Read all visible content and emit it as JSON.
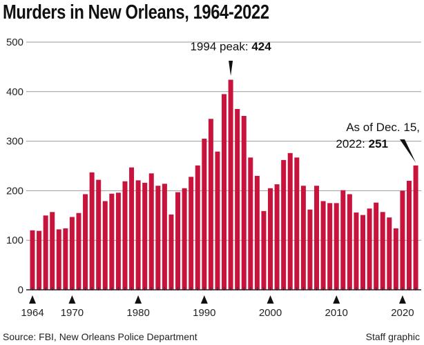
{
  "chart_data": {
    "type": "bar",
    "title": "Murders in New Orleans, 1964-2022",
    "categories": [
      1964,
      1965,
      1966,
      1967,
      1968,
      1969,
      1970,
      1971,
      1972,
      1973,
      1974,
      1975,
      1976,
      1977,
      1978,
      1979,
      1980,
      1981,
      1982,
      1983,
      1984,
      1985,
      1986,
      1987,
      1988,
      1989,
      1990,
      1991,
      1992,
      1993,
      1994,
      1995,
      1996,
      1997,
      1998,
      1999,
      2000,
      2001,
      2002,
      2003,
      2004,
      2005,
      2006,
      2007,
      2008,
      2009,
      2010,
      2011,
      2012,
      2013,
      2014,
      2015,
      2016,
      2017,
      2018,
      2019,
      2020,
      2021,
      2022
    ],
    "values": [
      120,
      119,
      150,
      157,
      122,
      124,
      147,
      155,
      193,
      237,
      222,
      179,
      194,
      196,
      219,
      247,
      221,
      216,
      235,
      210,
      214,
      152,
      197,
      205,
      228,
      251,
      305,
      345,
      279,
      395,
      424,
      365,
      351,
      267,
      230,
      159,
      205,
      213,
      262,
      276,
      267,
      210,
      162,
      210,
      179,
      175,
      175,
      201,
      193,
      156,
      151,
      164,
      176,
      157,
      146,
      124,
      200,
      220,
      251
    ],
    "ylim": [
      0,
      500
    ],
    "yticks": [
      "0",
      "100",
      "200",
      "300",
      "400",
      "500"
    ],
    "xticks": [
      "1964",
      "1970",
      "1980",
      "1990",
      "2000",
      "2010",
      "2020"
    ],
    "grid": true,
    "bar_color": "#c8143c",
    "annotations": [
      {
        "year": 1994,
        "label": "1994 peak: ",
        "value": "424"
      },
      {
        "year": 2022,
        "line1": "As of Dec. 15,",
        "label": "2022: ",
        "value": "251"
      }
    ],
    "source": "Source: FBI, New Orleans Police Department",
    "credit": "Staff graphic"
  }
}
